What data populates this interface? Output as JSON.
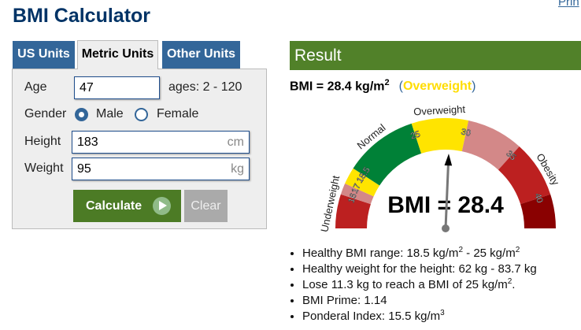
{
  "header": {
    "title": "BMI Calculator",
    "print_link": "Prin"
  },
  "tabs": [
    {
      "label": "US Units"
    },
    {
      "label": "Metric Units",
      "active": true
    },
    {
      "label": "Other Units"
    }
  ],
  "form": {
    "age": {
      "label": "Age",
      "value": "47",
      "hint": "ages: 2 - 120"
    },
    "gender": {
      "label": "Gender",
      "options": [
        "Male",
        "Female"
      ],
      "selected": "Male"
    },
    "height": {
      "label": "Height",
      "value": "183",
      "unit": "cm"
    },
    "weight": {
      "label": "Weight",
      "value": "95",
      "unit": "kg"
    },
    "calculate_label": "Calculate",
    "clear_label": "Clear"
  },
  "result": {
    "heading": "Result",
    "bmi_prefix": "BMI = 28.4 kg/m",
    "bmi_sup": "2",
    "category_open": "(",
    "category": "Overweight",
    "category_close": ")",
    "gauge": {
      "value": 28.4,
      "value_text": "BMI = 28.4",
      "scale": [
        13,
        43
      ],
      "segments": [
        {
          "from": 13,
          "to": 16,
          "color": "#bc2020"
        },
        {
          "from": 16,
          "to": 17,
          "color": "#d38888"
        },
        {
          "from": 17,
          "to": 18.5,
          "color": "#ffe400"
        },
        {
          "from": 18.5,
          "to": 25,
          "color": "#008137"
        },
        {
          "from": 25,
          "to": 30,
          "color": "#ffe400"
        },
        {
          "from": 30,
          "to": 35,
          "color": "#d38888"
        },
        {
          "from": 35,
          "to": 40,
          "color": "#bc2020"
        },
        {
          "from": 40,
          "to": 43,
          "color": "#8a0101"
        }
      ],
      "ticks": [
        "16",
        "17",
        "18.5",
        "25",
        "30",
        "35",
        "40"
      ],
      "categories": [
        {
          "label": "Underweight",
          "at": 15
        },
        {
          "label": "Normal",
          "at": 21.5
        },
        {
          "label": "Overweight",
          "at": 27.5
        },
        {
          "label": "Obesity",
          "at": 38
        }
      ]
    },
    "bullets": [
      {
        "parts": [
          "Healthy BMI range: 18.5 kg/m",
          "2",
          " - 25 kg/m",
          "2",
          ""
        ]
      },
      {
        "parts": [
          "Healthy weight for the height: 62 kg - 83.7 kg"
        ]
      },
      {
        "parts": [
          "Lose 11.3 kg to reach a BMI of 25 kg/m",
          "2",
          "."
        ]
      },
      {
        "parts": [
          "BMI Prime: 1.14"
        ]
      },
      {
        "parts": [
          "Ponderal Index: 15.5 kg/m",
          "3",
          ""
        ]
      }
    ]
  }
}
